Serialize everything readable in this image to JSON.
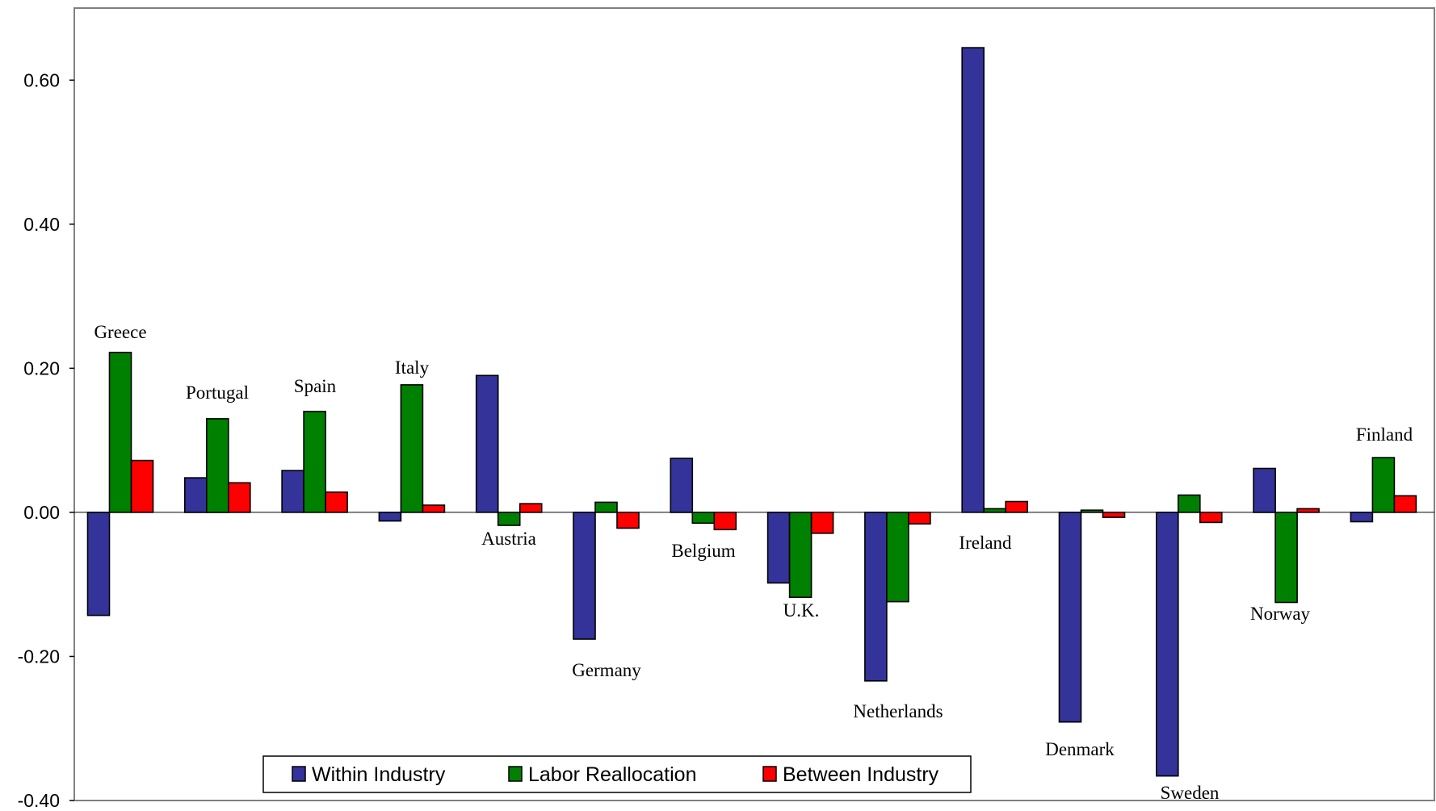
{
  "chart_data": {
    "type": "bar",
    "categories": [
      "Greece",
      "Portugal",
      "Spain",
      "Italy",
      "Austria",
      "Germany",
      "Belgium",
      "U.K.",
      "Netherlands",
      "Ireland",
      "Denmark",
      "Sweden",
      "Norway",
      "Finland"
    ],
    "series": [
      {
        "name": "Within Industry",
        "color": "#333399",
        "values": [
          -0.143,
          0.048,
          0.058,
          -0.012,
          0.19,
          -0.176,
          0.075,
          -0.098,
          -0.234,
          0.645,
          -0.291,
          -0.366,
          0.061,
          -0.013
        ]
      },
      {
        "name": "Labor Reallocation",
        "color": "#008000",
        "values": [
          0.222,
          0.13,
          0.14,
          0.177,
          -0.018,
          0.014,
          -0.015,
          -0.118,
          -0.124,
          0.005,
          0.003,
          0.024,
          -0.125,
          0.076
        ]
      },
      {
        "name": "Between Industry",
        "color": "#ff0000",
        "values": [
          0.072,
          0.041,
          0.028,
          0.01,
          0.012,
          -0.022,
          -0.024,
          -0.029,
          -0.016,
          0.015,
          -0.007,
          -0.014,
          0.005,
          0.023
        ]
      }
    ],
    "title": "",
    "xlabel": "",
    "ylabel": "",
    "ylim": [
      -0.4,
      0.7
    ],
    "yticks": [
      -0.4,
      -0.2,
      0.0,
      0.2,
      0.4,
      0.6
    ],
    "ytick_labels": [
      "-0.40",
      "-0.20",
      "0.00",
      "0.20",
      "0.40",
      "0.60"
    ],
    "grid": false,
    "legend_position": "bottom-center"
  }
}
